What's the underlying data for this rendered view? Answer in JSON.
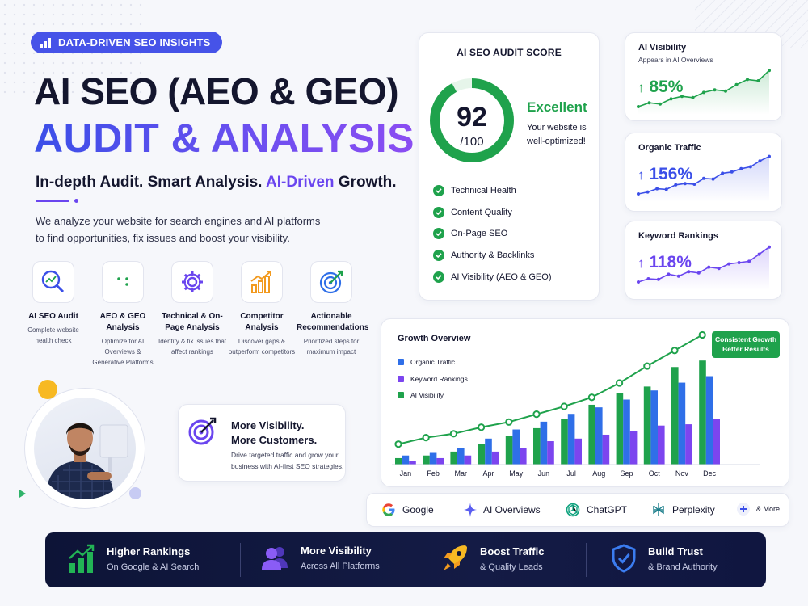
{
  "badge": {
    "label": "DATA-DRIVEN SEO INSIGHTS",
    "icon": "bar-chart-icon"
  },
  "hero": {
    "line1": "AI SEO (AEO & GEO)",
    "line2": "AUDIT & ANALYSIS",
    "tagline_a": "In-depth Audit. Smart Analysis. ",
    "tagline_hl": "AI-Driven",
    "tagline_b": " Growth.",
    "description": "We analyze your website for search engines and AI platforms to find opportunities, fix issues and boost your visibility."
  },
  "services": [
    {
      "title": "AI SEO Audit",
      "sub": "Complete website health check",
      "icon": "magnifier-chart-icon",
      "color": "#3b4fe8"
    },
    {
      "title": "AEO & GEO Analysis",
      "sub": "Optimize for AI Overviews & Generative Platforms",
      "icon": "ai-brain-icon",
      "color": "#1fa24c"
    },
    {
      "title": "Technical & On-Page Analysis",
      "sub": "Identify & fix issues that affect rankings",
      "icon": "gear-icon",
      "color": "#6a45ef"
    },
    {
      "title": "Competitor Analysis",
      "sub": "Discover gaps & outperform competitors",
      "icon": "bar-growth-icon",
      "color": "#f29a1f"
    },
    {
      "title": "Actionable Recommendations",
      "sub": "Prioritized steps for maximum impact",
      "icon": "target-icon",
      "color": "#2f6fe8"
    }
  ],
  "visibility_card": {
    "title_1": "More Visibility.",
    "title_2": "More Customers.",
    "sub": "Drive targeted traffic and grow your business with AI-first SEO strategies.",
    "icon": "target-arrow-icon"
  },
  "audit": {
    "heading": "AI SEO AUDIT SCORE",
    "score": "92",
    "score_of": "/100",
    "score_value": 92,
    "rating": "Excellent",
    "rating_sub": "Your website is well-optimized!",
    "checks": [
      "Technical Health",
      "Content Quality",
      "On-Page SEO",
      "Authority & Backlinks",
      "AI Visibility (AEO & GEO)"
    ]
  },
  "metrics": [
    {
      "title": "AI Visibility",
      "sub": "Appears in AI Overviews",
      "value": "85%",
      "color": "#1fa24c",
      "trend": [
        1.0,
        1.6,
        1.4,
        2.2,
        2.6,
        2.4,
        3.2,
        3.6,
        3.4,
        4.4,
        5.2,
        5.0,
        6.6
      ]
    },
    {
      "title": "Organic Traffic",
      "sub": "",
      "value": "156%",
      "color": "#3b4fe8",
      "trend": [
        1.0,
        1.3,
        1.8,
        1.7,
        2.4,
        2.6,
        2.5,
        3.4,
        3.3,
        4.2,
        4.4,
        4.9,
        5.2,
        6.1,
        6.8
      ]
    },
    {
      "title": "Keyword Rankings",
      "sub": "",
      "value": "118%",
      "color": "#6a45ef",
      "trend": [
        1.0,
        1.5,
        1.4,
        2.2,
        1.9,
        2.6,
        2.4,
        3.3,
        3.1,
        3.8,
        4.0,
        4.2,
        5.3,
        6.4
      ]
    }
  ],
  "chart_data": {
    "type": "bar",
    "title": "Growth Overview",
    "categories": [
      "Jan",
      "Feb",
      "Mar",
      "Apr",
      "May",
      "Jun",
      "Jul",
      "Aug",
      "Sep",
      "Oct",
      "Nov",
      "Dec"
    ],
    "series": [
      {
        "name": "Organic Traffic",
        "color": "#2f6fe8",
        "values": [
          7,
          9,
          13,
          20,
          27,
          33,
          39,
          44,
          50,
          57,
          63,
          68
        ]
      },
      {
        "name": "Keyword Rankings",
        "color": "#7c45ef",
        "values": [
          3,
          5,
          7,
          10,
          13,
          18,
          20,
          23,
          26,
          30,
          31,
          35
        ]
      },
      {
        "name": "AI Visibility",
        "color": "#1fa24c",
        "values": [
          5,
          7,
          10,
          16,
          22,
          28,
          35,
          46,
          55,
          60,
          75,
          80
        ]
      }
    ],
    "line_series": {
      "color": "#1fa24c",
      "values": [
        12,
        17,
        20,
        25,
        29,
        35,
        41,
        48,
        59,
        72,
        84,
        96
      ]
    },
    "callout": {
      "line1": "Consistent Growth",
      "line2": "Better Results"
    },
    "grid": false,
    "legend": "top-left"
  },
  "platforms": [
    {
      "label": "Google",
      "icon": "google-icon"
    },
    {
      "label": "AI Overviews",
      "icon": "sparkle-icon"
    },
    {
      "label": "ChatGPT",
      "icon": "chatgpt-icon"
    },
    {
      "label": "Perplexity",
      "icon": "perplexity-icon"
    },
    {
      "label": "& More",
      "icon": "plus-icon"
    }
  ],
  "features": [
    {
      "title": "Higher Rankings",
      "sub": "On Google & AI Search",
      "icon": "ranking-bars-icon"
    },
    {
      "title": "More Visibility",
      "sub": "Across All Platforms",
      "icon": "users-icon"
    },
    {
      "title": "Boost Traffic",
      "sub": "& Quality Leads",
      "icon": "rocket-icon"
    },
    {
      "title": "Build Trust",
      "sub": "& Brand Authority",
      "icon": "shield-check-icon"
    }
  ],
  "colors": {
    "primary": "#3b4fe8",
    "accent": "#6a45ef",
    "success": "#1fa24c",
    "dark": "#0d1437"
  }
}
